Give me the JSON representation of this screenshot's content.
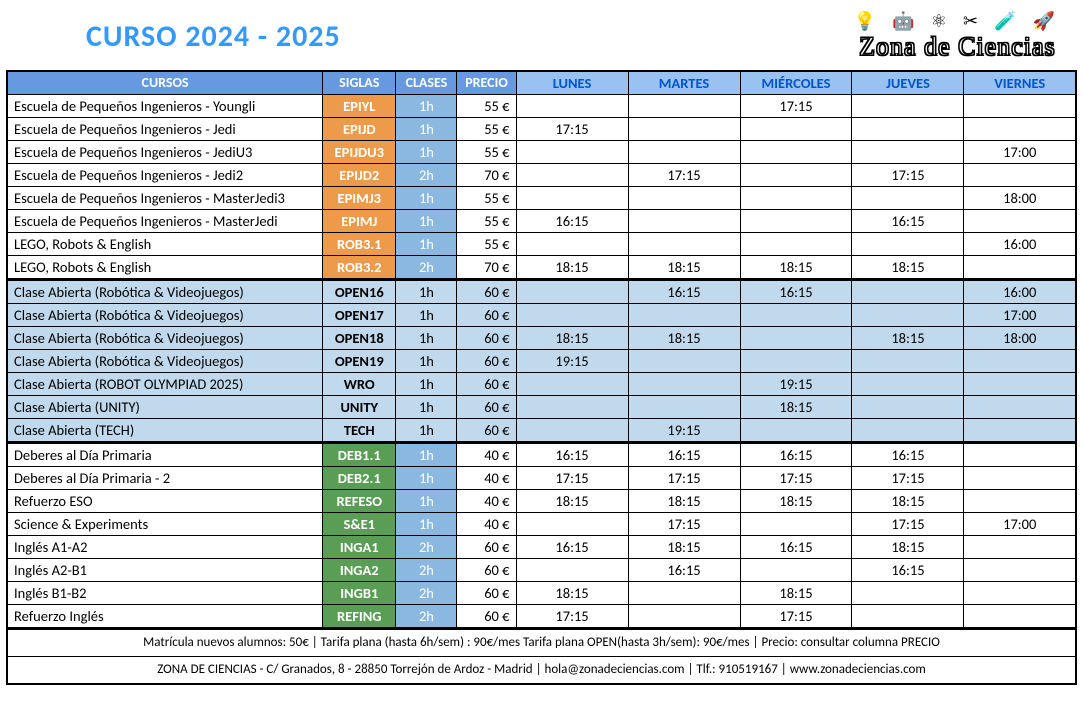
{
  "title": "CURSO  2024 - 2025",
  "logo": {
    "brand": "Zona de Ciencias",
    "icons": "💡 🤖 ⚛ ✂ 🧪 🚀"
  },
  "headers": {
    "cursos": "CURSOS",
    "siglas": "SIGLAS",
    "clases": "CLASES",
    "precio": "PRECIO",
    "days": [
      "LUNES",
      "MARTES",
      "MIÉRCOLES",
      "JUEVES",
      "VIERNES"
    ]
  },
  "colors": {
    "hdr_main": "#6699e0",
    "hdr_day": "#99c2f0",
    "day_text": "#0055cc",
    "orange": "#ed9b4a",
    "lightblue_cell": "#8ab8e0",
    "blue_row": "#c1d9ec",
    "green": "#5a9e56",
    "title": "#3399ff"
  },
  "rows": [
    {
      "style": "orange",
      "sep": false,
      "name": "Escuela de Pequeños Ingenieros - Youngli",
      "sigla": "EPIYL",
      "clase": "1h",
      "precio": "55 €",
      "t": [
        "",
        "",
        "17:15",
        "",
        ""
      ]
    },
    {
      "style": "orange",
      "sep": false,
      "name": "Escuela de Pequeños Ingenieros - Jedi",
      "sigla": "EPIJD",
      "clase": "1h",
      "precio": "55 €",
      "t": [
        "17:15",
        "",
        "",
        "",
        ""
      ]
    },
    {
      "style": "orange",
      "sep": false,
      "name": "Escuela de Pequeños Ingenieros - JediU3",
      "sigla": "EPIJDU3",
      "clase": "1h",
      "precio": "55 €",
      "t": [
        "",
        "",
        "",
        "",
        "17:00"
      ]
    },
    {
      "style": "orange",
      "sep": false,
      "name": "Escuela de Pequeños Ingenieros - Jedi2",
      "sigla": "EPIJD2",
      "clase": "2h",
      "precio": "70 €",
      "t": [
        "",
        "17:15",
        "",
        "17:15",
        ""
      ]
    },
    {
      "style": "orange",
      "sep": false,
      "name": "Escuela de Pequeños Ingenieros - MasterJedi3",
      "sigla": "EPIMJ3",
      "clase": "1h",
      "precio": "55 €",
      "t": [
        "",
        "",
        "",
        "",
        "18:00"
      ]
    },
    {
      "style": "orange",
      "sep": false,
      "name": "Escuela de Pequeños Ingenieros - MasterJedi",
      "sigla": "EPIMJ",
      "clase": "1h",
      "precio": "55 €",
      "t": [
        "16:15",
        "",
        "",
        "16:15",
        ""
      ]
    },
    {
      "style": "orange",
      "sep": false,
      "name": "LEGO, Robots & English",
      "sigla": "ROB3.1",
      "clase": "1h",
      "precio": "55 €",
      "t": [
        "",
        "",
        "",
        "",
        "16:00"
      ]
    },
    {
      "style": "orange",
      "sep": false,
      "name": "LEGO, Robots & English",
      "sigla": "ROB3.2",
      "clase": "2h",
      "precio": "70 €",
      "t": [
        "18:15",
        "18:15",
        "18:15",
        "18:15",
        ""
      ]
    },
    {
      "style": "blue",
      "sep": true,
      "name": "Clase Abierta (Robótica & Videojuegos)",
      "sigla": "OPEN16",
      "clase": "1h",
      "precio": "60 €",
      "t": [
        "",
        "16:15",
        "16:15",
        "",
        "16:00"
      ]
    },
    {
      "style": "blue",
      "sep": false,
      "name": "Clase Abierta (Robótica & Videojuegos)",
      "sigla": "OPEN17",
      "clase": "1h",
      "precio": "60 €",
      "t": [
        "",
        "",
        "",
        "",
        "17:00"
      ]
    },
    {
      "style": "blue",
      "sep": false,
      "name": "Clase Abierta (Robótica & Videojuegos)",
      "sigla": "OPEN18",
      "clase": "1h",
      "precio": "60 €",
      "t": [
        "18:15",
        "18:15",
        "",
        "18:15",
        "18:00"
      ]
    },
    {
      "style": "blue",
      "sep": false,
      "name": "Clase Abierta (Robótica & Videojuegos)",
      "sigla": "OPEN19",
      "clase": "1h",
      "precio": "60 €",
      "t": [
        "19:15",
        "",
        "",
        "",
        ""
      ]
    },
    {
      "style": "blue",
      "sep": false,
      "name": "Clase Abierta (ROBOT OLYMPIAD 2025)",
      "sigla": "WRO",
      "clase": "1h",
      "precio": "60 €",
      "t": [
        "",
        "",
        "19:15",
        "",
        ""
      ]
    },
    {
      "style": "blue",
      "sep": false,
      "name": "Clase Abierta (UNITY)",
      "sigla": "UNITY",
      "clase": "1h",
      "precio": "60 €",
      "t": [
        "",
        "",
        "18:15",
        "",
        ""
      ]
    },
    {
      "style": "blue",
      "sep": false,
      "name": "Clase Abierta (TECH)",
      "sigla": "TECH",
      "clase": "1h",
      "precio": "60 €",
      "t": [
        "",
        "19:15",
        "",
        "",
        ""
      ]
    },
    {
      "style": "green",
      "sep": true,
      "name": "Deberes al Día Primaria",
      "sigla": "DEB1.1",
      "clase": "1h",
      "precio": "40 €",
      "t": [
        "16:15",
        "16:15",
        "16:15",
        "16:15",
        ""
      ]
    },
    {
      "style": "green",
      "sep": false,
      "name": "Deberes al Día Primaria - 2",
      "sigla": "DEB2.1",
      "clase": "1h",
      "precio": "40 €",
      "t": [
        "17:15",
        "17:15",
        "17:15",
        "17:15",
        ""
      ]
    },
    {
      "style": "green",
      "sep": false,
      "name": "Refuerzo ESO",
      "sigla": "REFESO",
      "clase": "1h",
      "precio": "40 €",
      "t": [
        "18:15",
        "18:15",
        "18:15",
        "18:15",
        ""
      ]
    },
    {
      "style": "green",
      "sep": false,
      "name": "Science & Experiments",
      "sigla": "S&E1",
      "clase": "1h",
      "precio": "40 €",
      "t": [
        "",
        "17:15",
        "",
        "17:15",
        "17:00"
      ]
    },
    {
      "style": "green",
      "sep": false,
      "name": "Inglés A1-A2",
      "sigla": "INGA1",
      "clase": "2h",
      "precio": "60 €",
      "t": [
        "16:15",
        "18:15",
        "16:15",
        "18:15",
        ""
      ]
    },
    {
      "style": "green",
      "sep": false,
      "name": "Inglés A2-B1",
      "sigla": "INGA2",
      "clase": "2h",
      "precio": "60 €",
      "t": [
        "",
        "16:15",
        "",
        "16:15",
        ""
      ]
    },
    {
      "style": "green",
      "sep": false,
      "name": "Inglés B1-B2",
      "sigla": "INGB1",
      "clase": "2h",
      "precio": "60 €",
      "t": [
        "18:15",
        "",
        "18:15",
        "",
        ""
      ]
    },
    {
      "style": "green",
      "sep": false,
      "name": "Refuerzo Inglés",
      "sigla": "REFING",
      "clase": "2h",
      "precio": "60 €",
      "t": [
        "17:15",
        "",
        "17:15",
        "",
        ""
      ]
    }
  ],
  "footer1": "Matrícula nuevos alumnos: 50€    |    Tarifa plana (hasta 6h/sem) : 90€/mes   Tarifa plana OPEN(hasta 3h/sem): 90€/mes   |   Precio: consultar columna PRECIO",
  "footer2": "ZONA DE CIENCIAS - C/ Granados, 8 -  28850 Torrejón de Ardoz - Madrid    |    hola@zonadeciencias.com    |    Tlf.: 910519167    |    www.zonadeciencias.com"
}
